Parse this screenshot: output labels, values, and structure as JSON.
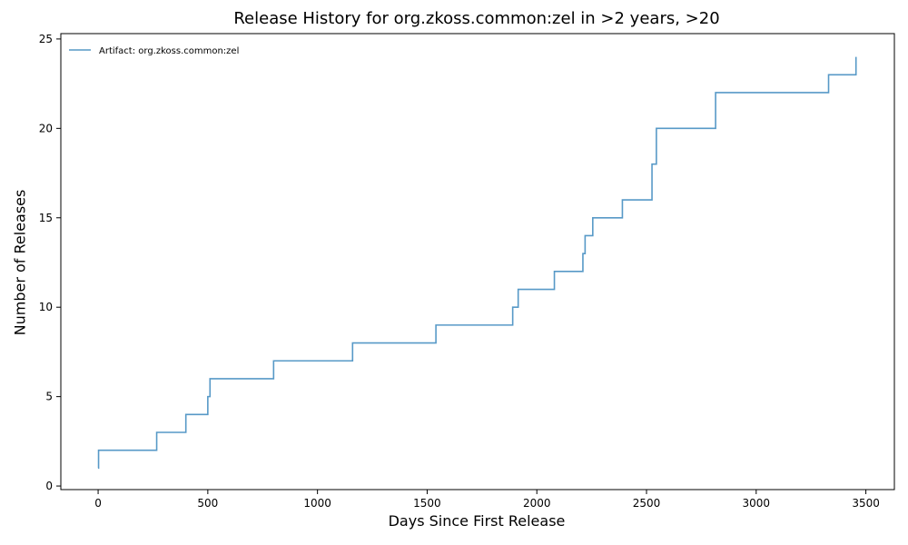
{
  "chart_data": {
    "type": "line",
    "step": "post",
    "title": "Release History for org.zkoss.common:zel in >2 years, >20",
    "xlabel": "Days Since First Release",
    "ylabel": "Number of Releases",
    "xlim": [
      -170,
      3630
    ],
    "ylim": [
      -0.2,
      25.3
    ],
    "xticks": [
      0,
      500,
      1000,
      1500,
      2000,
      2500,
      3000,
      3500
    ],
    "yticks": [
      0,
      5,
      10,
      15,
      20,
      25
    ],
    "grid": false,
    "legend_position": "top-left",
    "series": [
      {
        "name": "Artifact: org.zkoss.common:zel",
        "color": "#1f77b4",
        "x": [
          0,
          2,
          267,
          400,
          500,
          510,
          800,
          1160,
          1540,
          1890,
          1915,
          2080,
          2210,
          2220,
          2255,
          2390,
          2525,
          2545,
          2815,
          3330,
          3455
        ],
        "y": [
          1,
          2,
          3,
          4,
          5,
          6,
          7,
          8,
          9,
          10,
          11,
          12,
          13,
          14,
          15,
          16,
          18,
          20,
          22,
          23,
          24
        ]
      }
    ]
  }
}
